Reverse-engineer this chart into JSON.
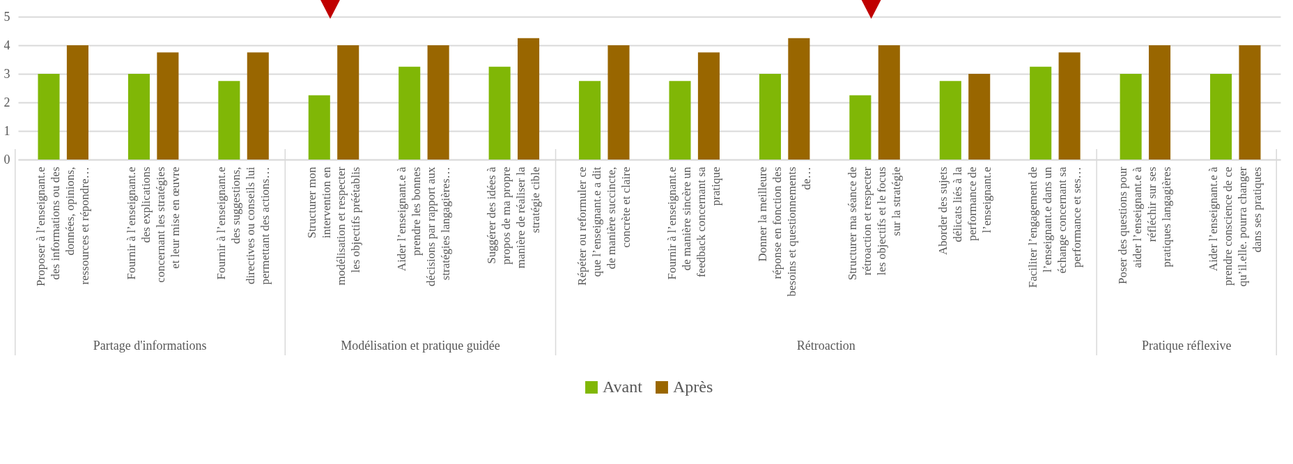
{
  "chart_data": {
    "type": "bar",
    "categories": [
      "Proposer à l’enseignant.e des informations ou des données, opinions, ressources et répondre…",
      "Fournir à l’enseignant.e des explications concernant les stratégies et leur mise en œuvre",
      "Fournir à l’enseignant.e des suggestions, directives ou conseils lui permettant des actions…",
      "Structurer mon intervention en modélisation et respecter les objectifs préétablis",
      "Aider l’enseignant.e à prendre les bonnes décisions par rapport aux stratégies langagières…",
      "Suggérer des idées à propos de ma propre manière de réaliser la stratégie cible",
      "Répéter ou reformuler ce que l’enseignant.e a dit de manière succincte, concrète et claire",
      "Fournir à l’enseignant.e de manière sincère un feedback concernant sa pratique",
      "Donner la meilleure réponse en fonction des besoins et questionnements de…",
      "Structurer ma séance de rétroaction et respecter les objectifs et le focus sur la stratégie",
      "Aborder des sujets délicats liés à la performance de l’enseignant.e",
      "Faciliter l’engagement de l’enseignant.e dans un échange concernant sa performance et ses…",
      "Poser des questions pour aider l’enseignant.e à réfléchir sur ses pratiques langagières",
      "Aider l’enseignant.e à prendre conscience de ce qu’il.elle. pourra changer dans ses pratiques"
    ],
    "series": [
      {
        "name": "Avant",
        "color": "#80b706",
        "values": [
          3,
          3,
          2.75,
          2.25,
          3.25,
          3.25,
          2.75,
          2.75,
          3,
          2.25,
          2.75,
          3.25,
          3,
          3
        ]
      },
      {
        "name": "Après",
        "color": "#996600",
        "values": [
          4,
          3.75,
          3.75,
          4,
          4,
          4.25,
          4,
          3.75,
          4.25,
          4,
          3,
          3.75,
          4,
          4
        ]
      }
    ],
    "ylim": [
      0,
      5
    ],
    "yticks": [
      0,
      1,
      2,
      3,
      4,
      5
    ],
    "grid": "y",
    "legend": "bottom",
    "annotations": [
      "Partage d'informations",
      "Modélisation et pratique guidée",
      "Rétroaction",
      "Pratique réflexive"
    ]
  }
}
